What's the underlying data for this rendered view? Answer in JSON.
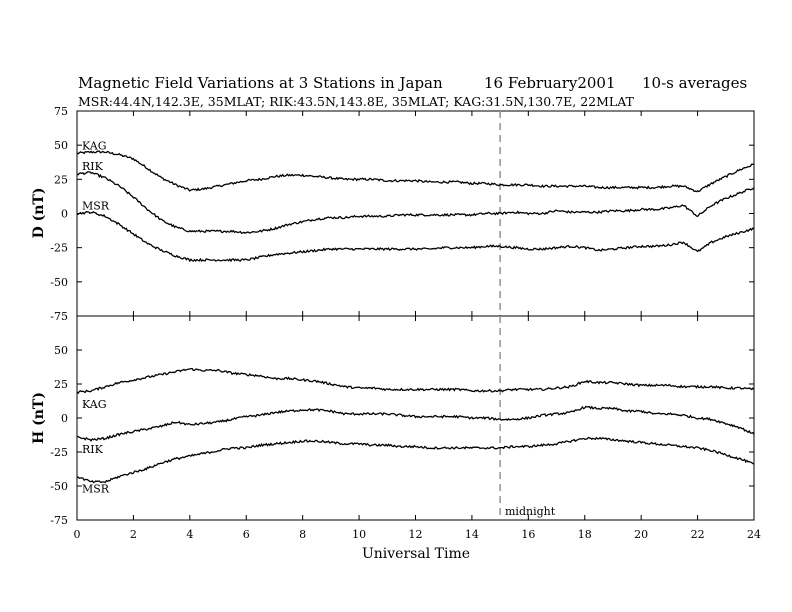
{
  "chart_data": {
    "type": "line",
    "title": "Magnetic Field Variations at 3 Stations in Japan",
    "date": "16  February2001",
    "averaging": "10-s averages",
    "subtitle": "MSR:44.4N,142.3E, 35MLAT;   RIK:43.5N,143.8E, 35MLAT;   KAG:31.5N,130.7E, 22MLAT",
    "xlabel": "Universal Time",
    "xlim": [
      0,
      24
    ],
    "xticks": [
      "0",
      "2",
      "4",
      "6",
      "8",
      "10",
      "12",
      "14",
      "16",
      "18",
      "20",
      "22",
      "24"
    ],
    "midnight": {
      "x": 15,
      "label": "midnight"
    },
    "panels": [
      {
        "ylabel": "D (nT)",
        "ylim": [
          -75,
          75
        ],
        "yticks": [
          "75",
          "50",
          "25",
          "0",
          "-25",
          "-50",
          "-75"
        ],
        "series": [
          {
            "name": "KAG",
            "x": [
              0,
              0.5,
              1,
              1.5,
              2,
              2.5,
              3,
              3.5,
              4,
              4.5,
              5,
              5.5,
              6,
              6.5,
              7,
              7.5,
              8,
              8.5,
              9,
              9.5,
              10,
              10.5,
              11,
              11.5,
              12,
              12.5,
              13,
              13.5,
              14,
              14.5,
              15,
              15.5,
              16,
              16.5,
              17,
              17.5,
              18,
              18.5,
              19,
              19.5,
              20,
              20.5,
              21,
              21.5,
              22,
              22.5,
              23,
              23.5,
              24
            ],
            "values": [
              44,
              45,
              45,
              43,
              40,
              33,
              26,
              21,
              17,
              18,
              20,
              22,
              24,
              25,
              27,
              28,
              28,
              27,
              26,
              25,
              25,
              25,
              24,
              24,
              24,
              23,
              23,
              23,
              22,
              22,
              21,
              21,
              21,
              20,
              20,
              20,
              20,
              19,
              19,
              19,
              19,
              19,
              20,
              20,
              16,
              22,
              27,
              32,
              36
            ]
          },
          {
            "name": "RIK",
            "x": [
              0,
              0.5,
              1,
              1.5,
              2,
              2.5,
              3,
              3.5,
              4,
              4.5,
              5,
              5.5,
              6,
              6.5,
              7,
              7.5,
              8,
              8.5,
              9,
              9.5,
              10,
              10.5,
              11,
              11.5,
              12,
              12.5,
              13,
              13.5,
              14,
              14.5,
              15,
              15.5,
              16,
              16.5,
              17,
              17.5,
              18,
              18.5,
              19,
              19.5,
              20,
              20.5,
              21,
              21.5,
              22,
              22.5,
              23,
              23.5,
              24
            ],
            "values": [
              29,
              30,
              26,
              20,
              12,
              3,
              -5,
              -10,
              -13,
              -13,
              -13,
              -13,
              -14,
              -13,
              -11,
              -8,
              -6,
              -4,
              -3,
              -3,
              -2,
              -2,
              -2,
              -1,
              -1,
              -1,
              -1,
              -1,
              -1,
              0,
              0,
              1,
              0,
              0,
              2,
              1,
              1,
              1,
              2,
              2,
              3,
              3,
              4,
              6,
              -2,
              6,
              11,
              15,
              19
            ]
          },
          {
            "name": "MSR",
            "x": [
              0,
              0.5,
              1,
              1.5,
              2,
              2.5,
              3,
              3.5,
              4,
              4.5,
              5,
              5.5,
              6,
              6.5,
              7,
              7.5,
              8,
              8.5,
              9,
              9.5,
              10,
              10.5,
              11,
              11.5,
              12,
              12.5,
              13,
              13.5,
              14,
              14.5,
              15,
              15.5,
              16,
              16.5,
              17,
              17.5,
              18,
              18.5,
              19,
              19.5,
              20,
              20.5,
              21,
              21.5,
              22,
              22.5,
              23,
              23.5,
              24
            ],
            "values": [
              0,
              1,
              -2,
              -8,
              -15,
              -22,
              -27,
              -31,
              -34,
              -34,
              -34,
              -34,
              -34,
              -32,
              -30,
              -29,
              -28,
              -27,
              -26,
              -26,
              -26,
              -26,
              -26,
              -26,
              -26,
              -26,
              -25,
              -25,
              -25,
              -24,
              -24,
              -25,
              -26,
              -26,
              -25,
              -24,
              -25,
              -27,
              -26,
              -25,
              -24,
              -24,
              -23,
              -21,
              -28,
              -21,
              -17,
              -14,
              -11
            ]
          }
        ]
      },
      {
        "ylabel": "H (nT)",
        "ylim": [
          -75,
          75
        ],
        "yticks": [
          "75",
          "50",
          "25",
          "0",
          "-25",
          "-50",
          "-75"
        ],
        "series": [
          {
            "name": "KAG",
            "x": [
              0,
              0.5,
              1,
              1.5,
              2,
              2.5,
              3,
              3.5,
              4,
              4.5,
              5,
              5.5,
              6,
              6.5,
              7,
              7.5,
              8,
              8.5,
              9,
              9.5,
              10,
              10.5,
              11,
              11.5,
              12,
              12.5,
              13,
              13.5,
              14,
              14.5,
              15,
              15.5,
              16,
              16.5,
              17,
              17.5,
              18,
              18.5,
              19,
              19.5,
              20,
              20.5,
              21,
              21.5,
              22,
              22.5,
              23,
              23.5,
              24
            ],
            "values": [
              19,
              20,
              23,
              26,
              28,
              30,
              32,
              34,
              36,
              35,
              35,
              33,
              32,
              31,
              29,
              29,
              28,
              27,
              25,
              23,
              22,
              22,
              21,
              21,
              21,
              21,
              21,
              21,
              20,
              20,
              20,
              21,
              21,
              21,
              22,
              23,
              27,
              26,
              26,
              25,
              24,
              24,
              24,
              23,
              23,
              23,
              22,
              22,
              21
            ]
          },
          {
            "name": "RIK",
            "x": [
              0,
              0.5,
              1,
              1.5,
              2,
              2.5,
              3,
              3.5,
              4,
              4.5,
              5,
              5.5,
              6,
              6.5,
              7,
              7.5,
              8,
              8.5,
              9,
              9.5,
              10,
              10.5,
              11,
              11.5,
              12,
              12.5,
              13,
              13.5,
              14,
              14.5,
              15,
              15.5,
              16,
              16.5,
              17,
              17.5,
              18,
              18.5,
              19,
              19.5,
              20,
              20.5,
              21,
              21.5,
              22,
              22.5,
              23,
              23.5,
              24
            ],
            "values": [
              -14,
              -16,
              -15,
              -12,
              -10,
              -8,
              -6,
              -3,
              -5,
              -4,
              -3,
              -1,
              1,
              2,
              4,
              5,
              6,
              6,
              5,
              3,
              3,
              3,
              3,
              2,
              1,
              1,
              1,
              1,
              0,
              0,
              -1,
              -1,
              0,
              2,
              3,
              4,
              8,
              7,
              7,
              5,
              5,
              3,
              3,
              2,
              0,
              -1,
              -4,
              -7,
              -12
            ]
          },
          {
            "name": "MSR",
            "x": [
              0,
              0.5,
              1,
              1.5,
              2,
              2.5,
              3,
              3.5,
              4,
              4.5,
              5,
              5.5,
              6,
              6.5,
              7,
              7.5,
              8,
              8.5,
              9,
              9.5,
              10,
              10.5,
              11,
              11.5,
              12,
              12.5,
              13,
              13.5,
              14,
              14.5,
              15,
              15.5,
              16,
              16.5,
              17,
              17.5,
              18,
              18.5,
              19,
              19.5,
              20,
              20.5,
              21,
              21.5,
              22,
              22.5,
              23,
              23.5,
              24
            ],
            "values": [
              -43,
              -47,
              -47,
              -43,
              -40,
              -37,
              -33,
              -30,
              -28,
              -26,
              -24,
              -22,
              -22,
              -20,
              -19,
              -18,
              -17,
              -17,
              -18,
              -19,
              -19,
              -20,
              -20,
              -21,
              -21,
              -22,
              -22,
              -22,
              -22,
              -22,
              -22,
              -21,
              -21,
              -20,
              -19,
              -17,
              -15,
              -15,
              -16,
              -17,
              -18,
              -19,
              -20,
              -21,
              -22,
              -24,
              -27,
              -30,
              -34
            ]
          }
        ]
      }
    ]
  }
}
